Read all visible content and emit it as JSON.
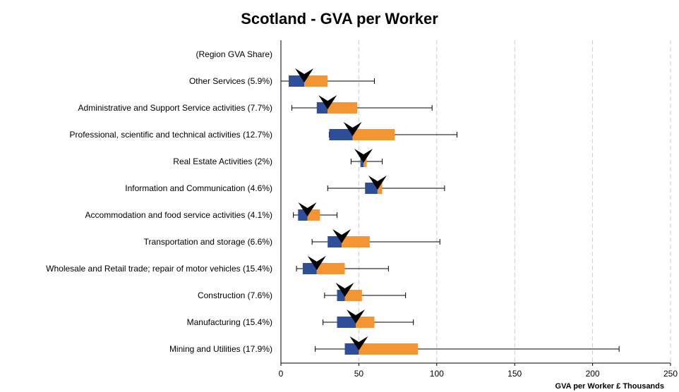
{
  "chart_data": {
    "type": "boxplot",
    "title": "Scotland - GVA per Worker",
    "xlabel": "GVA per Worker £ Thousands",
    "ylabel": "",
    "xlim": [
      0,
      250
    ],
    "xticks": [
      0,
      50,
      100,
      150,
      200,
      250
    ],
    "grid": "vertical dashed",
    "header_label": "(Region GVA Share)",
    "colors": {
      "lower_box": "#2e4e9a",
      "upper_box": "#f39532",
      "whisker": "#000000",
      "marker": "#000000",
      "grid": "#cccccc"
    },
    "categories": [
      {
        "label": "Other Services (5.9%)",
        "min": 0,
        "q1": 5,
        "median": 15,
        "q3": 30,
        "max": 60,
        "marker": 15
      },
      {
        "label": "Administrative and Support Service activities (7.7%)",
        "min": 7,
        "q1": 23,
        "median": 30,
        "q3": 49,
        "max": 97,
        "marker": 30
      },
      {
        "label": "Professional, scientific and technical activities (12.7%)",
        "min": 31,
        "q1": 31,
        "median": 46,
        "q3": 73,
        "max": 113,
        "marker": 46
      },
      {
        "label": "Real Estate Activities (2%)",
        "min": 45,
        "q1": 51,
        "median": 53,
        "q3": 55,
        "max": 65,
        "marker": 53
      },
      {
        "label": "Information and Communication (4.6%)",
        "min": 30,
        "q1": 54,
        "median": 62,
        "q3": 65,
        "max": 105,
        "marker": 62
      },
      {
        "label": "Accommodation and food service activities (4.1%)",
        "min": 8,
        "q1": 11,
        "median": 17,
        "q3": 25,
        "max": 36,
        "marker": 17
      },
      {
        "label": "Transportation and storage (6.6%)",
        "min": 20,
        "q1": 30,
        "median": 39,
        "q3": 57,
        "max": 102,
        "marker": 39
      },
      {
        "label": "Wholesale and Retail trade; repair of motor vehicles (15.4%)",
        "min": 10,
        "q1": 14,
        "median": 23,
        "q3": 41,
        "max": 69,
        "marker": 23
      },
      {
        "label": "Construction (7.6%)",
        "min": 28,
        "q1": 36,
        "median": 41,
        "q3": 52,
        "max": 80,
        "marker": 41
      },
      {
        "label": "Manufacturing (15.4%)",
        "min": 27,
        "q1": 36,
        "median": 48,
        "q3": 60,
        "max": 85,
        "marker": 48
      },
      {
        "label": "Mining and Utilities (17.9%)",
        "min": 22,
        "q1": 41,
        "median": 50,
        "q3": 88,
        "max": 217,
        "marker": 50
      }
    ]
  }
}
